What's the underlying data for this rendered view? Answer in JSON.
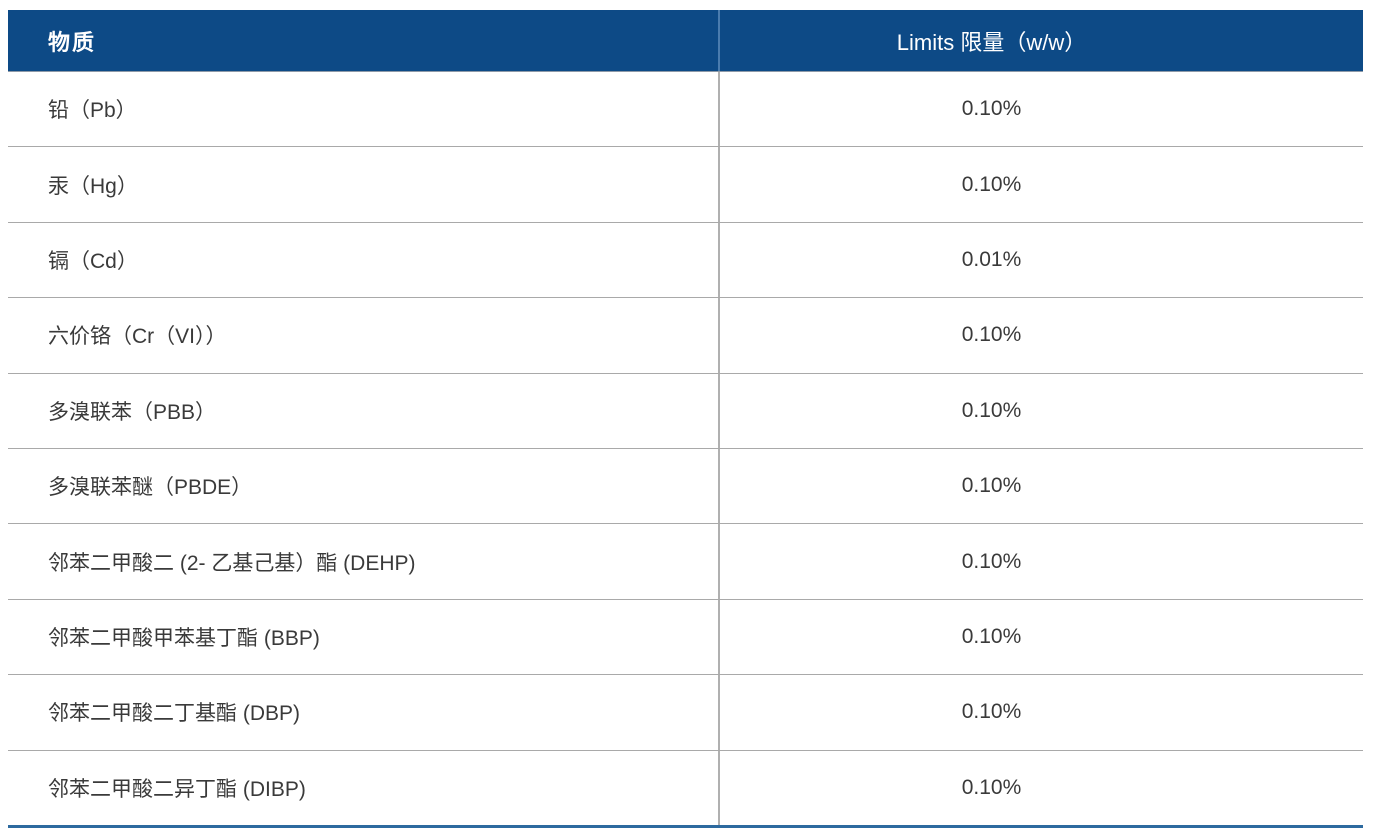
{
  "table": {
    "columns": [
      {
        "label": "物质"
      },
      {
        "label": "Limits 限量（w/w）"
      }
    ],
    "rows": [
      {
        "substance": "铅（Pb）",
        "limit": "0.10%"
      },
      {
        "substance": "汞（Hg）",
        "limit": "0.10%"
      },
      {
        "substance": "镉（Cd）",
        "limit": "0.01%"
      },
      {
        "substance": "六价铬（Cr（VI））",
        "limit": "0.10%"
      },
      {
        "substance": "多溴联苯（PBB）",
        "limit": "0.10%"
      },
      {
        "substance": "多溴联苯醚（PBDE）",
        "limit": "0.10%"
      },
      {
        "substance": "邻苯二甲酸二 (2- 乙基己基）酯 (DEHP)",
        "limit": "0.10%"
      },
      {
        "substance": "邻苯二甲酸甲苯基丁酯 (BBP)",
        "limit": "0.10%"
      },
      {
        "substance": "邻苯二甲酸二丁基酯 (DBP)",
        "limit": "0.10%"
      },
      {
        "substance": "邻苯二甲酸二异丁酯 (DIBP)",
        "limit": "0.10%"
      }
    ],
    "colors": {
      "header_bg": "#0d4a86",
      "header_text": "#ffffff",
      "header_divider": "#4a7cae",
      "body_divider": "#b0b0b0",
      "row_line": "#a9a9a9",
      "bottom_border": "#2d6a9f",
      "body_text": "#3a3a3a"
    }
  }
}
